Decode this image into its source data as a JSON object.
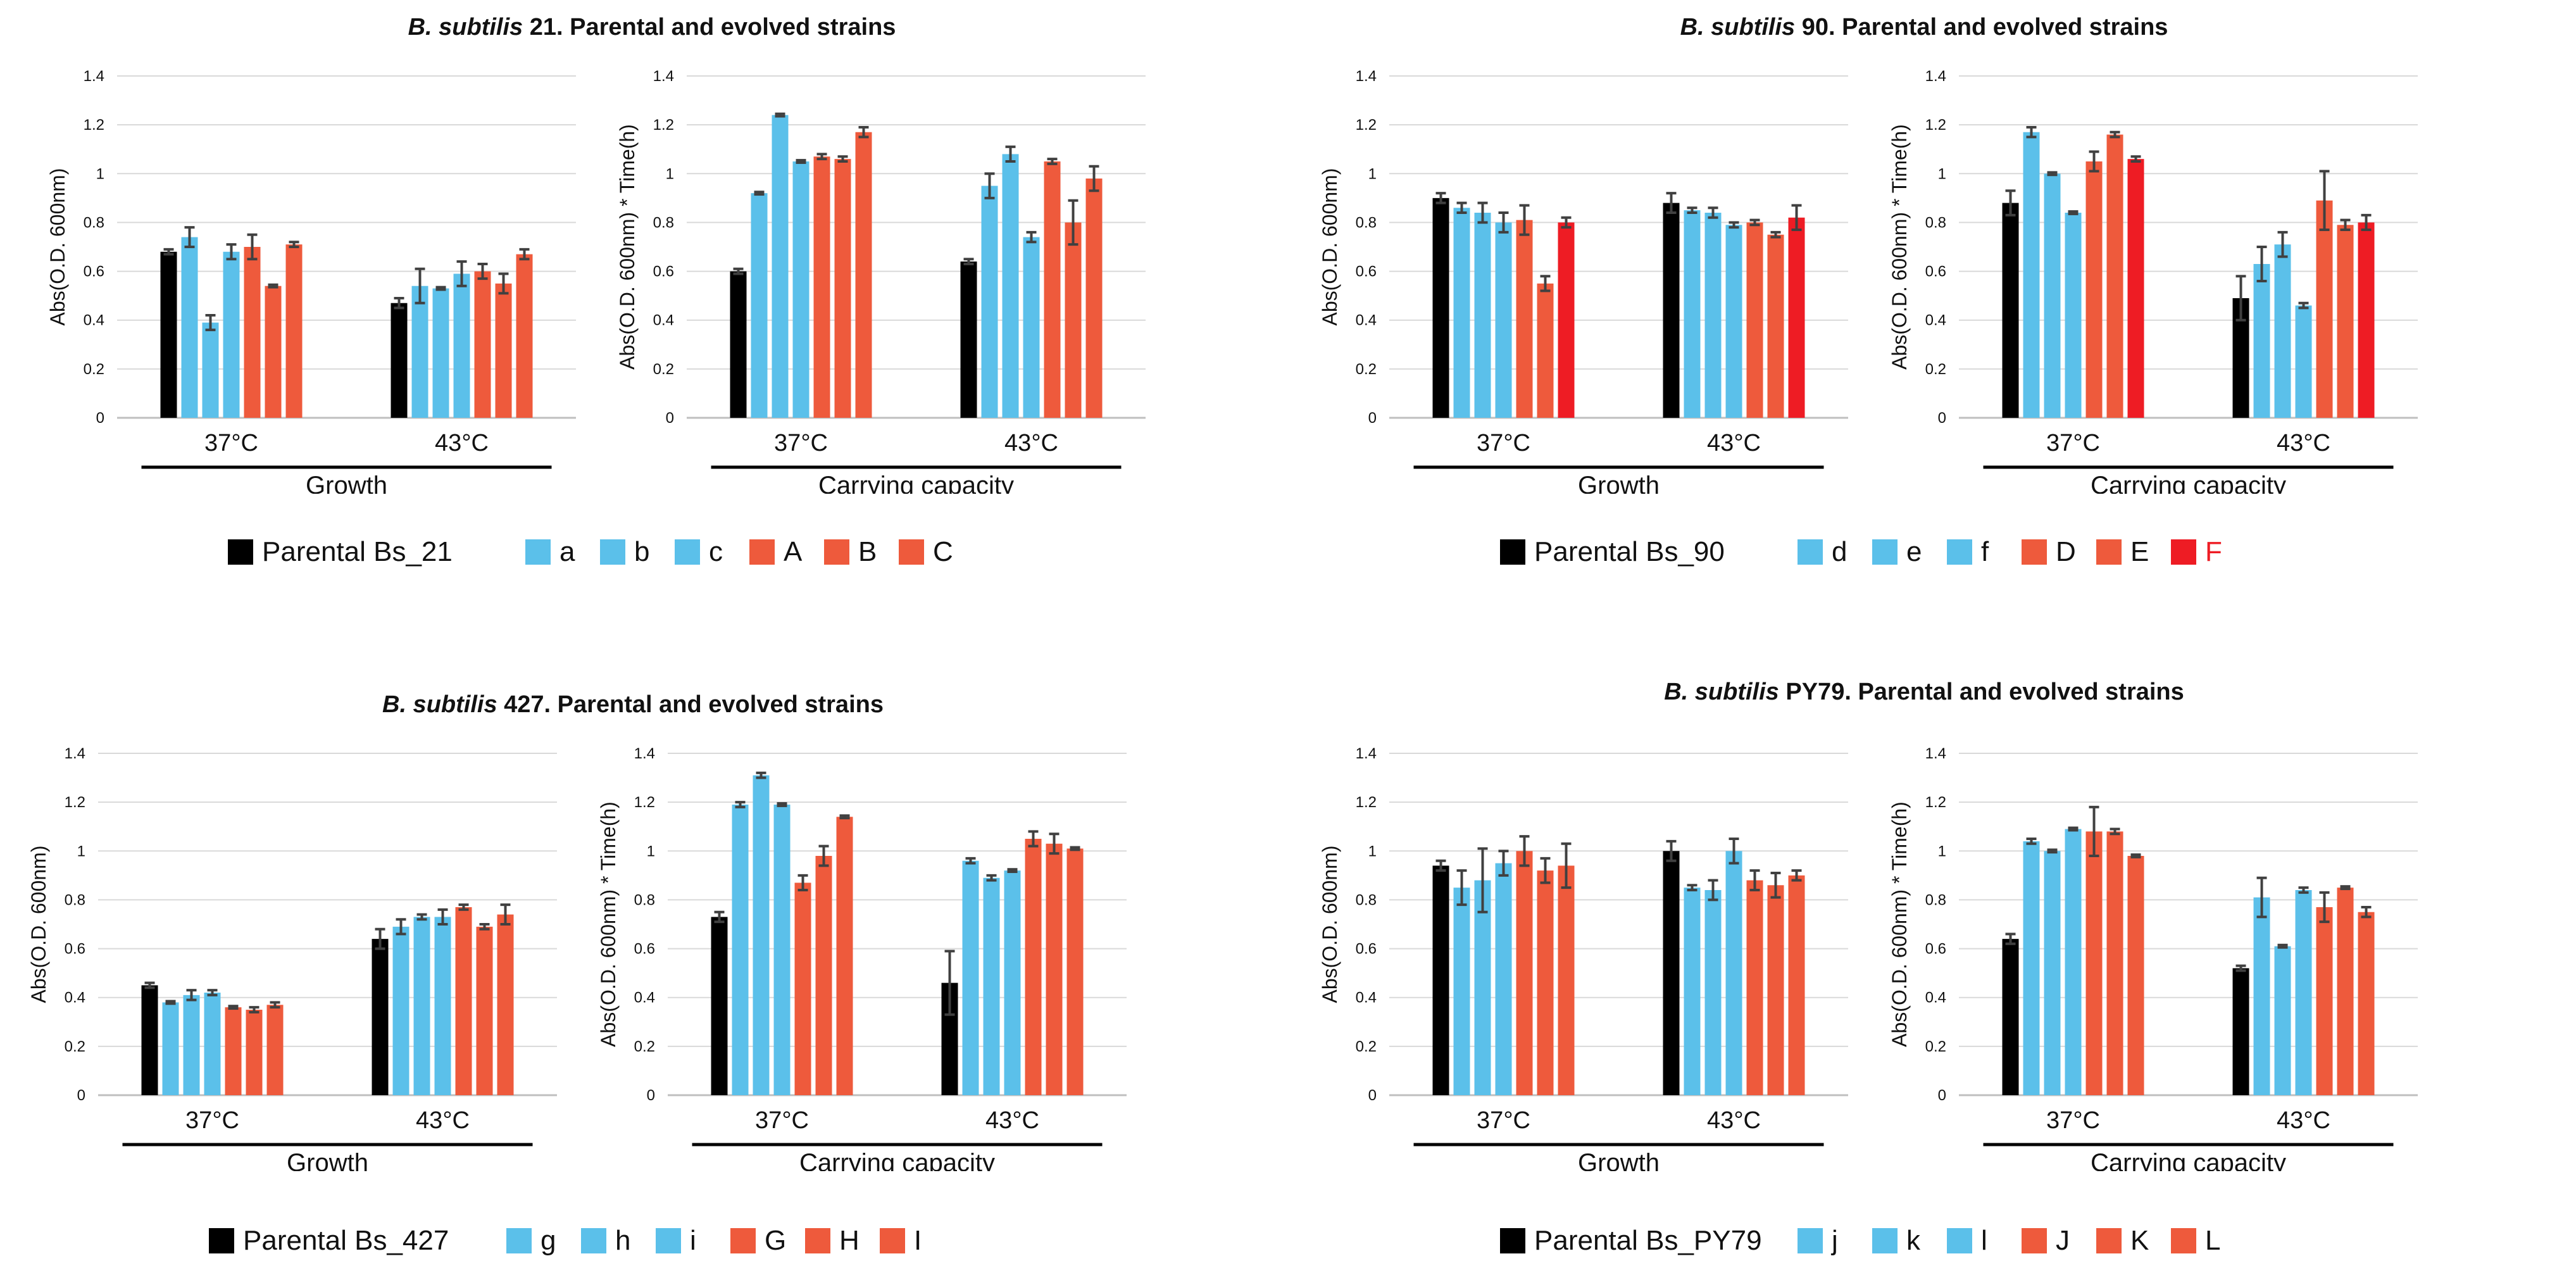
{
  "colors": {
    "parental": "#000000",
    "blue": "#5bc0ea",
    "red": "#ee5a3c",
    "red_bright": "#ee1c24",
    "grid": "#d9d9d9",
    "axis": "#bfbfbf",
    "error": "#404040",
    "text": "#111111"
  },
  "y_ticks": [
    "0",
    "0.2",
    "0.4",
    "0.6",
    "0.8",
    "1",
    "1.2",
    "1.4"
  ],
  "temp_labels": [
    "37°C",
    "43°C"
  ],
  "chart_data": [
    {
      "type": "bar",
      "panel_title": {
        "species": "B. subtilis",
        "rest": " 21. Parental and evolved strains"
      },
      "legend": [
        "Parental Bs_21",
        "a",
        "b",
        "c",
        "A",
        "B",
        "C"
      ],
      "legend_colors": [
        "parental",
        "blue",
        "blue",
        "blue",
        "red",
        "red",
        "red"
      ],
      "subcharts": [
        {
          "name": "growth",
          "xlabel": "Growth",
          "ylabel": "Abs(O.D. 600nm)",
          "ylim": [
            0,
            1.4
          ],
          "categories": [
            "37°C",
            "43°C"
          ],
          "series_values": [
            [
              0.68,
              0.74,
              0.39,
              0.68,
              0.7,
              0.54,
              0.71
            ],
            [
              0.47,
              0.54,
              0.53,
              0.59,
              0.6,
              0.55,
              0.67
            ]
          ],
          "series_errors": [
            [
              0.01,
              0.04,
              0.03,
              0.03,
              0.05,
              0.005,
              0.01
            ],
            [
              0.02,
              0.07,
              0.005,
              0.05,
              0.03,
              0.04,
              0.02
            ]
          ]
        },
        {
          "name": "capacity",
          "xlabel": "Carrying capacity",
          "ylabel": "Abs(O.D. 600nm) * Time(h)",
          "ylim": [
            0,
            1.4
          ],
          "categories": [
            "37°C",
            "43°C"
          ],
          "series_values": [
            [
              0.6,
              0.92,
              1.24,
              1.05,
              1.07,
              1.06,
              1.17
            ],
            [
              0.64,
              0.95,
              1.08,
              0.74,
              1.05,
              0.8,
              0.98
            ]
          ],
          "series_errors": [
            [
              0.01,
              0.005,
              0.005,
              0.005,
              0.01,
              0.01,
              0.02
            ],
            [
              0.01,
              0.05,
              0.03,
              0.02,
              0.01,
              0.09,
              0.05
            ]
          ]
        }
      ]
    },
    {
      "type": "bar",
      "panel_title": {
        "species": "B. subtilis",
        "rest": " 90. Parental and evolved strains"
      },
      "legend": [
        "Parental Bs_90",
        "d",
        "e",
        "f",
        "D",
        "E",
        "F"
      ],
      "legend_colors": [
        "parental",
        "blue",
        "blue",
        "blue",
        "red",
        "red",
        "red_bright"
      ],
      "subcharts": [
        {
          "name": "growth",
          "xlabel": "Growth",
          "ylabel": "Abs(O.D. 600nm)",
          "ylim": [
            0,
            1.4
          ],
          "categories": [
            "37°C",
            "43°C"
          ],
          "series_values": [
            [
              0.9,
              0.86,
              0.84,
              0.8,
              0.81,
              0.55,
              0.8
            ],
            [
              0.88,
              0.85,
              0.84,
              0.79,
              0.8,
              0.75,
              0.82
            ]
          ],
          "series_errors": [
            [
              0.02,
              0.02,
              0.04,
              0.04,
              0.06,
              0.03,
              0.02
            ],
            [
              0.04,
              0.01,
              0.02,
              0.01,
              0.01,
              0.01,
              0.05
            ]
          ]
        },
        {
          "name": "capacity",
          "xlabel": "Carrying capacity",
          "ylabel": "Abs(O.D. 600nm) * Time(h)",
          "ylim": [
            0,
            1.4
          ],
          "categories": [
            "37°C",
            "43°C"
          ],
          "series_values": [
            [
              0.88,
              1.17,
              1.0,
              0.84,
              1.05,
              1.16,
              1.06
            ],
            [
              0.49,
              0.63,
              0.71,
              0.46,
              0.89,
              0.79,
              0.8
            ]
          ],
          "series_errors": [
            [
              0.05,
              0.02,
              0.005,
              0.005,
              0.04,
              0.01,
              0.01
            ],
            [
              0.09,
              0.07,
              0.05,
              0.01,
              0.12,
              0.02,
              0.03
            ]
          ]
        }
      ]
    },
    {
      "type": "bar",
      "panel_title": {
        "species": "B. subtilis",
        "rest": " 427. Parental and evolved strains"
      },
      "legend": [
        "Parental Bs_427",
        "g",
        "h",
        "i",
        "G",
        "H",
        "I"
      ],
      "legend_colors": [
        "parental",
        "blue",
        "blue",
        "blue",
        "red",
        "red",
        "red"
      ],
      "subcharts": [
        {
          "name": "growth",
          "xlabel": "Growth",
          "ylabel": "Abs(O.D. 600nm)",
          "ylim": [
            0,
            1.4
          ],
          "categories": [
            "37°C",
            "43°C"
          ],
          "series_values": [
            [
              0.45,
              0.38,
              0.41,
              0.42,
              0.36,
              0.35,
              0.37
            ],
            [
              0.64,
              0.69,
              0.73,
              0.73,
              0.77,
              0.69,
              0.74
            ]
          ],
          "series_errors": [
            [
              0.01,
              0.005,
              0.02,
              0.01,
              0.005,
              0.01,
              0.01
            ],
            [
              0.04,
              0.03,
              0.01,
              0.03,
              0.01,
              0.01,
              0.04
            ]
          ]
        },
        {
          "name": "capacity",
          "xlabel": "Carrying capacity",
          "ylabel": "Abs(O.D. 600nm) * Time(h)",
          "ylim": [
            0,
            1.4
          ],
          "categories": [
            "37°C",
            "43°C"
          ],
          "series_values": [
            [
              0.73,
              1.19,
              1.31,
              1.19,
              0.87,
              0.98,
              1.14
            ],
            [
              0.46,
              0.96,
              0.89,
              0.92,
              1.05,
              1.03,
              1.01
            ]
          ],
          "series_errors": [
            [
              0.02,
              0.01,
              0.01,
              0.005,
              0.03,
              0.04,
              0.005
            ],
            [
              0.13,
              0.01,
              0.01,
              0.005,
              0.03,
              0.04,
              0.005
            ]
          ]
        }
      ]
    },
    {
      "type": "bar",
      "panel_title": {
        "species": "B. subtilis",
        "rest": " PY79. Parental and evolved strains"
      },
      "legend": [
        "Parental Bs_PY79",
        "j",
        "k",
        "l",
        "J",
        "K",
        "L"
      ],
      "legend_colors": [
        "parental",
        "blue",
        "blue",
        "blue",
        "red",
        "red",
        "red"
      ],
      "subcharts": [
        {
          "name": "growth",
          "xlabel": "Growth",
          "ylabel": "Abs(O.D. 600nm)",
          "ylim": [
            0,
            1.4
          ],
          "categories": [
            "37°C",
            "43°C"
          ],
          "series_values": [
            [
              0.94,
              0.85,
              0.88,
              0.95,
              1.0,
              0.92,
              0.94
            ],
            [
              1.0,
              0.85,
              0.84,
              1.0,
              0.88,
              0.86,
              0.9
            ]
          ],
          "series_errors": [
            [
              0.02,
              0.07,
              0.13,
              0.05,
              0.06,
              0.05,
              0.09
            ],
            [
              0.04,
              0.01,
              0.04,
              0.05,
              0.04,
              0.05,
              0.02
            ]
          ]
        },
        {
          "name": "capacity",
          "xlabel": "Carrying capacity",
          "ylabel": "Abs(O.D. 600nm) * Time(h)",
          "ylim": [
            0,
            1.4
          ],
          "categories": [
            "37°C",
            "43°C"
          ],
          "series_values": [
            [
              0.64,
              1.04,
              1.0,
              1.09,
              1.08,
              1.08,
              0.98
            ],
            [
              0.52,
              0.81,
              0.61,
              0.84,
              0.77,
              0.85,
              0.75
            ]
          ],
          "series_errors": [
            [
              0.02,
              0.01,
              0.005,
              0.005,
              0.1,
              0.01,
              0.005
            ],
            [
              0.01,
              0.08,
              0.005,
              0.01,
              0.06,
              0.005,
              0.02
            ]
          ]
        }
      ]
    }
  ]
}
